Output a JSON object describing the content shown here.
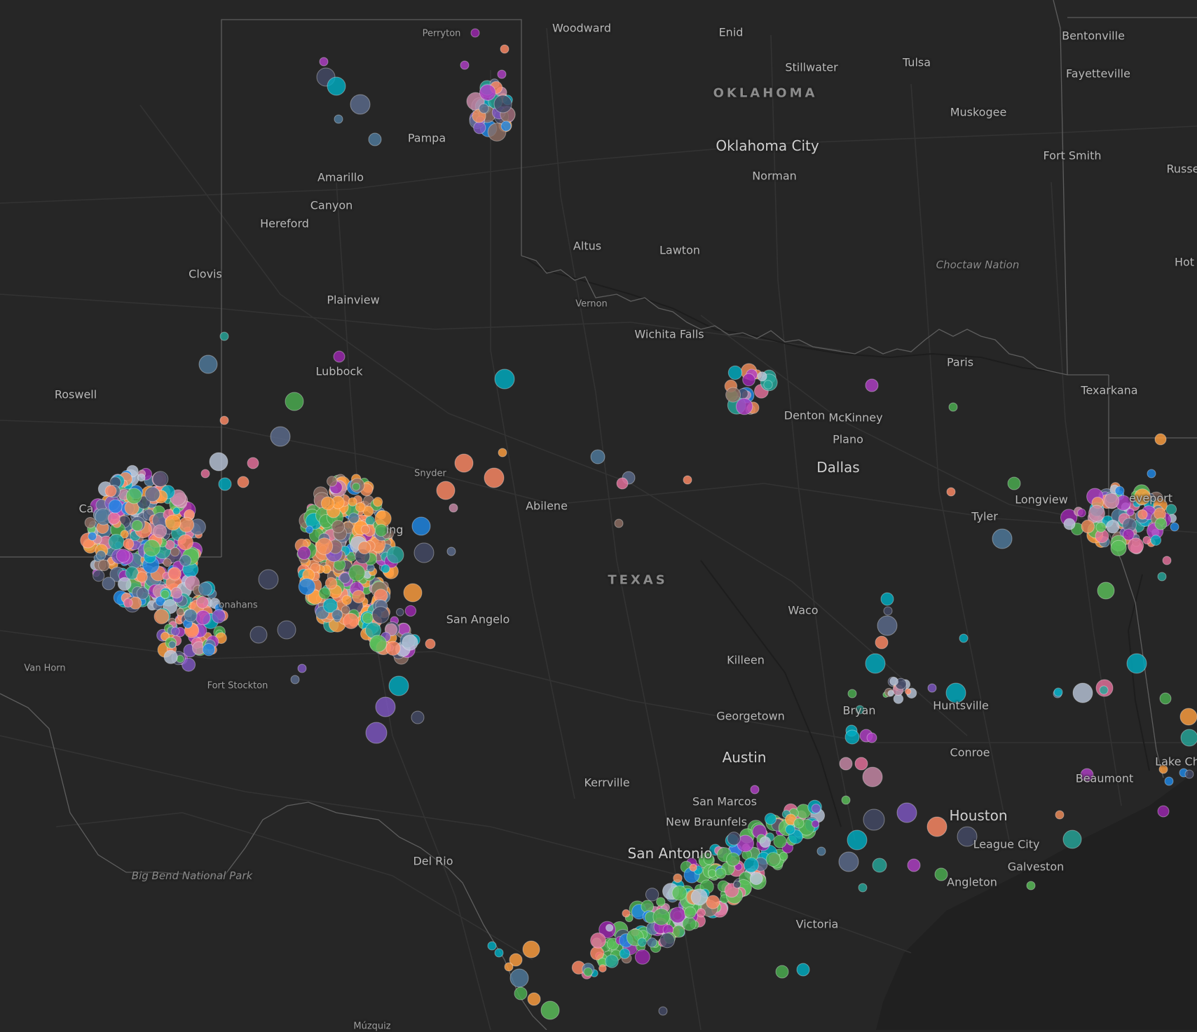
{
  "map": {
    "colors": {
      "background": "#262626",
      "state_border": "#5e5e5e",
      "road": "#333333",
      "river": "#1e1e1e",
      "gulf": "#202020",
      "palette": [
        "#ff9f40",
        "#f08e5a",
        "#4caf50",
        "#5cc05a",
        "#00acc1",
        "#26a69a",
        "#9c27b0",
        "#b03fc6",
        "#e5719c",
        "#c98aa8",
        "#5b6b8c",
        "#444b66",
        "#4f7a9c",
        "#1e88e5",
        "#b8c4d8",
        "#8d6e63",
        "#ff8a65",
        "#7e57c2"
      ]
    },
    "labels": [
      {
        "id": "woodward",
        "text": "Woodward",
        "size": "med"
      },
      {
        "id": "enid",
        "text": "Enid",
        "size": "med"
      },
      {
        "id": "perryton",
        "text": "Perryton",
        "size": "sm"
      },
      {
        "id": "stillwater",
        "text": "Stillwater",
        "size": "med"
      },
      {
        "id": "tulsa",
        "text": "Tulsa",
        "size": "med"
      },
      {
        "id": "bentonville",
        "text": "Bentonville",
        "size": "med"
      },
      {
        "id": "fayetteville",
        "text": "Fayetteville",
        "size": "med"
      },
      {
        "id": "oklahoma",
        "text": "OKLAHOMA",
        "size": "state"
      },
      {
        "id": "muskogee",
        "text": "Muskogee",
        "size": "med"
      },
      {
        "id": "pampa",
        "text": "Pampa",
        "size": "med"
      },
      {
        "id": "okc",
        "text": "Oklahoma City",
        "size": "big"
      },
      {
        "id": "fortsmith",
        "text": "Fort Smith",
        "size": "med"
      },
      {
        "id": "russe",
        "text": "Russe",
        "size": "med"
      },
      {
        "id": "norman",
        "text": "Norman",
        "size": "med"
      },
      {
        "id": "amarillo",
        "text": "Amarillo",
        "size": "med"
      },
      {
        "id": "canyon",
        "text": "Canyon",
        "size": "med"
      },
      {
        "id": "hereford",
        "text": "Hereford",
        "size": "med"
      },
      {
        "id": "altus",
        "text": "Altus",
        "size": "med"
      },
      {
        "id": "lawton",
        "text": "Lawton",
        "size": "med"
      },
      {
        "id": "choctaw",
        "text": "Choctaw Nation",
        "size": "park"
      },
      {
        "id": "hot",
        "text": "Hot",
        "size": "med"
      },
      {
        "id": "clovis",
        "text": "Clovis",
        "size": "med"
      },
      {
        "id": "plainview",
        "text": "Plainview",
        "size": "med"
      },
      {
        "id": "vernon",
        "text": "Vernon",
        "size": "sm"
      },
      {
        "id": "wichitafalls",
        "text": "Wichita Falls",
        "size": "med"
      },
      {
        "id": "paris",
        "text": "Paris",
        "size": "med"
      },
      {
        "id": "lubbock",
        "text": "Lubbock",
        "size": "med"
      },
      {
        "id": "texarkana",
        "text": "Texarkana",
        "size": "med"
      },
      {
        "id": "roswell",
        "text": "Roswell",
        "size": "med"
      },
      {
        "id": "denton",
        "text": "Denton",
        "size": "med"
      },
      {
        "id": "mckinney",
        "text": "McKinney",
        "size": "med"
      },
      {
        "id": "plano",
        "text": "Plano",
        "size": "med"
      },
      {
        "id": "snyder",
        "text": "Snyder",
        "size": "sm"
      },
      {
        "id": "dallas",
        "text": "Dallas",
        "size": "big"
      },
      {
        "id": "longview",
        "text": "Longview",
        "size": "med"
      },
      {
        "id": "shreveport",
        "text": "eveport",
        "size": "med"
      },
      {
        "id": "abilene",
        "text": "Abilene",
        "size": "med"
      },
      {
        "id": "carlsbad",
        "text": "Ca",
        "size": "med"
      },
      {
        "id": "tyler",
        "text": "Tyler",
        "size": "med"
      },
      {
        "id": "bigspring",
        "text": "ing",
        "size": "med"
      },
      {
        "id": "texas",
        "text": "TEXAS",
        "size": "state"
      },
      {
        "id": "monahans",
        "text": "onahans",
        "size": "sm"
      },
      {
        "id": "waco",
        "text": "Waco",
        "size": "med"
      },
      {
        "id": "sanangelo",
        "text": "San Angelo",
        "size": "med"
      },
      {
        "id": "killeen",
        "text": "Killeen",
        "size": "med"
      },
      {
        "id": "vanhorn",
        "text": "Van Horn",
        "size": "sm"
      },
      {
        "id": "fortstockton",
        "text": "Fort Stockton",
        "size": "sm"
      },
      {
        "id": "huntsville",
        "text": "Huntsville",
        "size": "med"
      },
      {
        "id": "bryan",
        "text": "Bryan",
        "size": "med"
      },
      {
        "id": "georgetown",
        "text": "Georgetown",
        "size": "med"
      },
      {
        "id": "austin",
        "text": "Austin",
        "size": "big"
      },
      {
        "id": "conroe",
        "text": "Conroe",
        "size": "med"
      },
      {
        "id": "lakecharles",
        "text": "Lake Ch",
        "size": "med"
      },
      {
        "id": "beaumont",
        "text": "Beaumont",
        "size": "med"
      },
      {
        "id": "kerrville",
        "text": "Kerrville",
        "size": "med"
      },
      {
        "id": "sanmarcos",
        "text": "San Marcos",
        "size": "med"
      },
      {
        "id": "houston",
        "text": "Houston",
        "size": "big"
      },
      {
        "id": "newbraunfels",
        "text": "New Braunfels",
        "size": "med"
      },
      {
        "id": "leaguecity",
        "text": "League City",
        "size": "med"
      },
      {
        "id": "sanantonio",
        "text": "San Antonio",
        "size": "big"
      },
      {
        "id": "delrio",
        "text": "Del Rio",
        "size": "med"
      },
      {
        "id": "galveston",
        "text": "Galveston",
        "size": "med"
      },
      {
        "id": "bigbend",
        "text": "Big Bend National Park",
        "size": "park"
      },
      {
        "id": "angleton",
        "text": "Angleton",
        "size": "med"
      },
      {
        "id": "victoria",
        "text": "Victoria",
        "size": "med"
      },
      {
        "id": "muzquiz",
        "text": "Múzquiz",
        "size": "sm"
      }
    ]
  }
}
